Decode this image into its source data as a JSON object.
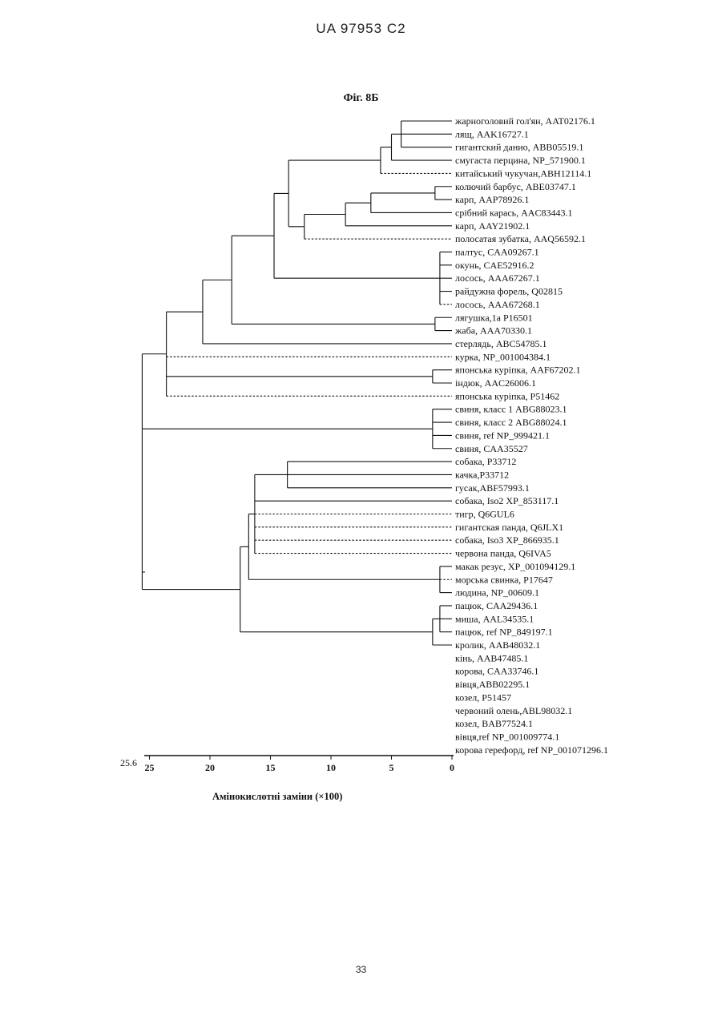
{
  "header": "UA   97953   C2",
  "figure": {
    "title": "Фіг. 8Б",
    "xlabel": "Амінокислотні заміни (×100)",
    "scale_label": "25.6",
    "ticks": [
      "25",
      "20",
      "15",
      "10",
      "5",
      "0"
    ]
  },
  "page_number": "33",
  "tree": {
    "leaves": [
      "жарноголовий гол'ян, AAT02176.1",
      "лящ, AAK16727.1",
      "гигантский данио, ABB05519.1",
      "смугаста перцина,  NP_571900.1",
      "китайський чукучан,ABH12114.1",
      "колючий барбус, ABE03747.1",
      "карп, AAP78926.1",
      "срібний карась,    AAC83443.1",
      "карп, AAY21902.1",
      "полосатая зубатка, AAQ56592.1",
      "палтус, CAA09267.1",
      "окунь, CAE52916.2",
      "лосось, AAA67267.1",
      "райдужна форель, Q02815",
      "лосось, AAA67268.1",
      "лягушка,1a P16501",
      "жаба,    AAA70330.1",
      "стерлядь, ABC54785.1",
      "курка,  NP_001004384.1",
      "японська куріпка,   AAF67202.1",
      "індюк,   AAC26006.1",
      "японська куріпка,    P51462",
      "свиня,  класс 1 ABG88023.1",
      "свиня,  класс 2 ABG88024.1",
      "свиня,  ref NP_999421.1",
      "свиня,  CAA35527",
      "собака, P33712",
      "качка,P33712",
      "гусак,ABF57993.1",
      "собака, Iso2 XP_853117.1",
      "тигр, Q6GUL6",
      "гигантская панда, Q6JLX1",
      "собака, Iso3 XP_866935.1",
      "червона панда, Q6IVA5",
      "макак резус, XP_001094129.1",
      "морська свинка, P17647",
      "людина,  NP_00609.1",
      "пацюк, CAA29436.1",
      "миша, AAL34535.1",
      "пацюк, ref NP_849197.1",
      "кролик, AAB48032.1",
      "кінь,    AAB47485.1",
      "корова, CAA33746.1",
      "вівця,ABB02295.1",
      "козел, P51457",
      "червоний олень,ABL98032.1",
      "козел, BAB77524.1",
      "вівця,ref NP_001009774.1",
      "корова герефорд, ref NP_001071296.1"
    ],
    "clades": [
      {
        "height": 4.2,
        "children": [
          0,
          1,
          2
        ]
      },
      {
        "height": 5.0,
        "children": [
          "c0",
          3
        ]
      },
      {
        "height": 5.9,
        "children": [
          "c1",
          4
        ]
      },
      {
        "height": 1.4,
        "children": [
          5,
          6
        ]
      },
      {
        "height": 6.7,
        "children": [
          "c3",
          7
        ]
      },
      {
        "height": 8.8,
        "children": [
          "c4",
          8
        ]
      },
      {
        "height": 12.2,
        "children": [
          "c5",
          9
        ]
      },
      {
        "height": 13.5,
        "children": [
          "c2",
          "c6"
        ]
      },
      {
        "height": 1.0,
        "children": [
          10,
          11,
          12,
          13,
          14
        ]
      },
      {
        "height": 14.7,
        "children": [
          "c7",
          "c8"
        ]
      },
      {
        "height": 1.4,
        "children": [
          15,
          16
        ]
      },
      {
        "height": 18.2,
        "children": [
          "c9",
          "c10"
        ]
      },
      {
        "height": 20.6,
        "children": [
          "c11",
          17
        ]
      },
      {
        "height": 1.6,
        "children": [
          19,
          20
        ]
      },
      {
        "height": 23.6,
        "children": [
          "c12",
          18,
          "c13",
          21
        ]
      },
      {
        "height": 1.6,
        "children": [
          22,
          23,
          24,
          25
        ]
      },
      {
        "height": 13.6,
        "children": [
          26,
          27,
          28
        ]
      },
      {
        "height": 16.3,
        "children": [
          "c16",
          29,
          30,
          31,
          32,
          33
        ]
      },
      {
        "height": 1.0,
        "children": [
          34,
          35,
          36
        ]
      },
      {
        "height": 16.8,
        "children": [
          "c17",
          "c18"
        ]
      },
      {
        "height": 1.0,
        "children": [
          37,
          38,
          39
        ]
      },
      {
        "height": 1.6,
        "children": [
          "c20",
          40
        ]
      },
      {
        "height": 17.5,
        "children": [
          "c19",
          "c21"
        ]
      },
      {
        "height": 17.8,
        "children": [
          "c22",
          41,
          42,
          43,
          44,
          45,
          46,
          47,
          48
        ]
      },
      {
        "height": 25.6,
        "children": [
          "c14",
          "c15",
          "c22"
        ]
      }
    ],
    "root": "c24",
    "dashed_leaves": [
      4,
      9,
      14,
      18,
      21,
      30,
      31,
      32,
      33,
      35,
      41,
      42,
      43,
      44,
      45,
      46,
      47,
      48
    ]
  }
}
